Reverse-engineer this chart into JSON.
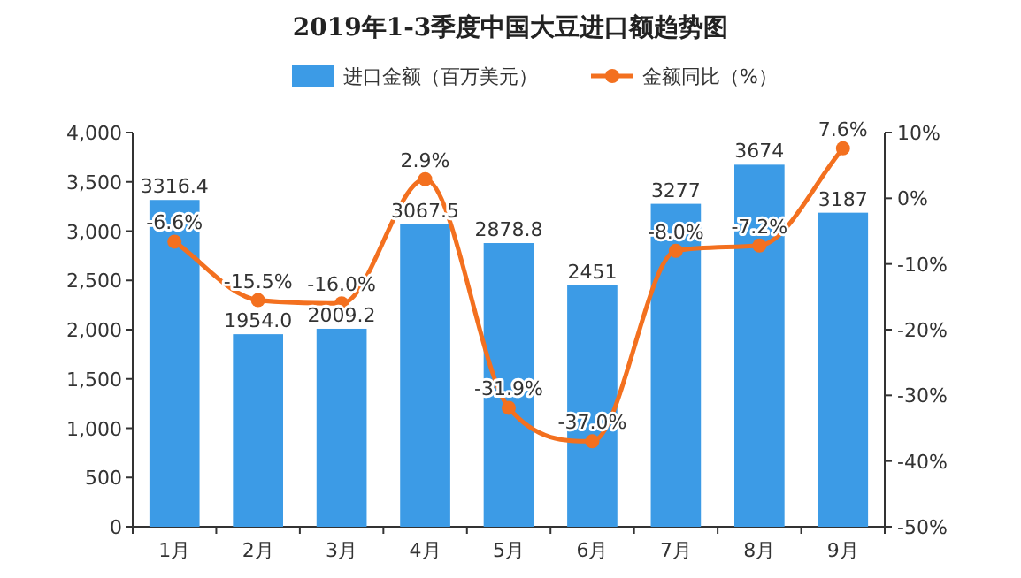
{
  "chart_data": {
    "type": "bar",
    "title": "2019年1-3季度中国大豆进口额趋势图",
    "categories": [
      "1月",
      "2月",
      "3月",
      "4月",
      "5月",
      "6月",
      "7月",
      "8月",
      "9月"
    ],
    "series": [
      {
        "name": "进口金额（百万美元）",
        "color": "#3c9be6",
        "values": [
          3316.4,
          1954.0,
          2009.2,
          3067.5,
          2878.8,
          2451,
          3277,
          3674,
          3187
        ],
        "value_labels": [
          "3316.4",
          "1954.0",
          "2009.2",
          "3067.5",
          "2878.8",
          "2451",
          "3277",
          "3674",
          "3187"
        ]
      },
      {
        "name": "金额同比（%）",
        "type": "line",
        "axis": "y2",
        "color": "#f3701f",
        "values": [
          -6.6,
          -15.5,
          -16.0,
          2.9,
          -31.9,
          -37.0,
          -8.0,
          -7.2,
          7.6
        ],
        "value_labels": [
          "-6.6%",
          "-15.5%",
          "-16.0%",
          "2.9%",
          "-31.9%",
          "-37.0%",
          "-8.0%",
          "-7.2%",
          "7.6%"
        ]
      }
    ],
    "ylim": [
      0,
      4000
    ],
    "yticks": [
      {
        "value": 0,
        "label": "0"
      },
      {
        "value": 500,
        "label": "500"
      },
      {
        "value": 1000,
        "label": "1,000"
      },
      {
        "value": 1500,
        "label": "1,500"
      },
      {
        "value": 2000,
        "label": "2,000"
      },
      {
        "value": 2500,
        "label": "2,500"
      },
      {
        "value": 3000,
        "label": "3,000"
      },
      {
        "value": 3500,
        "label": "3,500"
      },
      {
        "value": 4000,
        "label": "4,000"
      }
    ],
    "y2lim": [
      -50,
      10
    ],
    "y2ticks": [
      {
        "value": -50,
        "label": "-50%"
      },
      {
        "value": -40,
        "label": "-40%"
      },
      {
        "value": -30,
        "label": "-30%"
      },
      {
        "value": -20,
        "label": "-20%"
      },
      {
        "value": -10,
        "label": "-10%"
      },
      {
        "value": 0,
        "label": "0%"
      },
      {
        "value": 10,
        "label": "10%"
      }
    ],
    "marker": "circle",
    "legend": "top",
    "grid": false
  }
}
